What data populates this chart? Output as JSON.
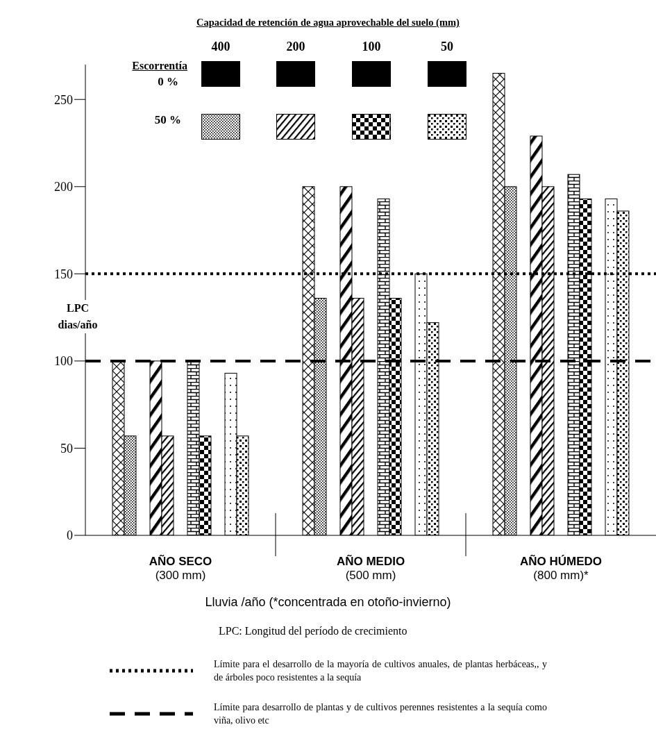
{
  "chart_data": {
    "type": "bar",
    "title": "Capacidad de retención de agua aprovechable del suelo (mm)",
    "legend_title": "Escorrentía",
    "xlabel": "Lluvia /año (*concentrada en otoño-invierno)",
    "ylabel": "LPC\ndias/año",
    "categories": [
      "AÑO SECO\n(300 mm)",
      "AÑO MEDIO\n(500 mm)",
      "AÑO HÚMEDO\n(800 mm)*"
    ],
    "series": [
      {
        "color": "#000000",
        "values": [
          100,
          200,
          265
        ]
      },
      {
        "color": "#000000",
        "values": [
          57,
          136,
          200
        ]
      },
      {
        "color": "#000000",
        "values": [
          100,
          200,
          229
        ]
      },
      {
        "color": "#000000",
        "values": [
          57,
          136,
          200
        ]
      },
      {
        "color": "#000000",
        "values": [
          100,
          193,
          207
        ]
      },
      {
        "color": "#000000",
        "values": [
          57,
          136,
          193
        ]
      },
      {
        "color": "#000000",
        "values": [
          93,
          150,
          193
        ]
      },
      {
        "color": "#000000",
        "values": [
          57,
          122,
          186
        ]
      }
    ],
    "ylim": [
      0,
      270
    ],
    "yticks": [
      0,
      50,
      100,
      150,
      200,
      250
    ],
    "legend": "bottom",
    "ref_lines": [
      {
        "axis": "y",
        "value": 150,
        "line_style": "dotted",
        "color": "#000000",
        "label": "Límite para el desarrollo de la mayoría de cultivos anuales, de plantas herbáceas,, y de árboles poco resistentes a la sequía"
      },
      {
        "axis": "y",
        "value": 100,
        "line_style": "dashed",
        "color": "#000000",
        "label": "Límite para desarrollo de plantas y de cultivos perennes resistentes a la sequía como viña, olivo etc"
      }
    ],
    "annotations": [
      "0 %",
      "50 %",
      "400",
      "200",
      "100",
      "50",
      "LPC: Longitud del período de crecimiento"
    ]
  }
}
